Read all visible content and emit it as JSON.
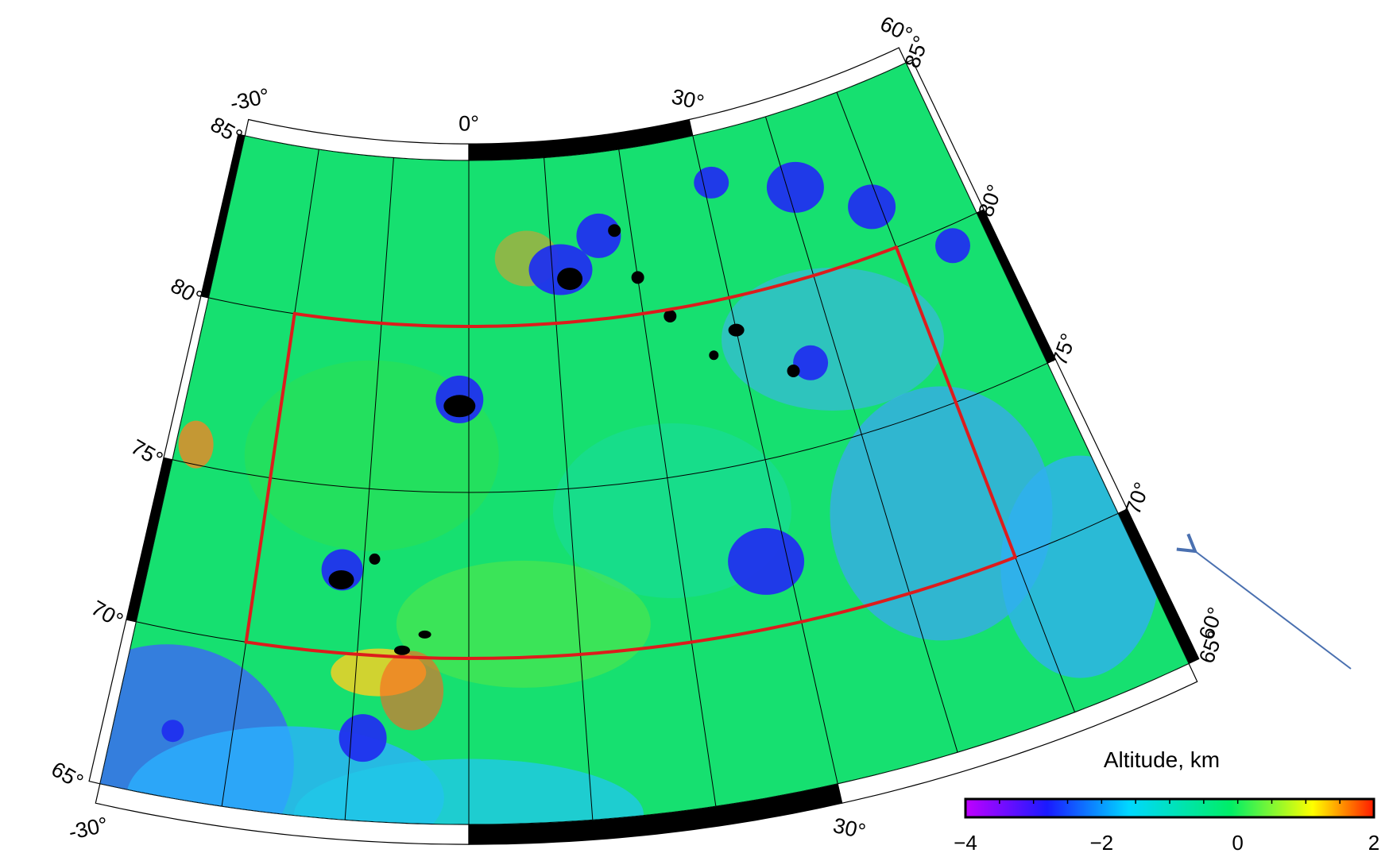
{
  "map": {
    "projection": "conic",
    "lon_range": [
      -30,
      60
    ],
    "lat_range": [
      65,
      85
    ],
    "gridline_lons": [
      -30,
      -20,
      -10,
      0,
      10,
      20,
      30,
      40,
      50,
      60
    ],
    "gridline_lats": [
      65,
      70,
      75,
      80,
      85
    ],
    "region_box": {
      "lon_min": -20,
      "lon_max": 50,
      "lat_min": 70,
      "lat_max": 80,
      "color": "#dd1c1c"
    },
    "lon_labels_outer": [
      "-30°",
      "0°",
      "30°"
    ],
    "lon_labels_inner": [
      "-30°",
      "0°",
      "30°",
      "60°"
    ],
    "lat_labels_left": [
      "65°",
      "70°",
      "75°",
      "80°",
      "85°"
    ],
    "lat_labels_right": [
      "85°",
      "80°",
      "75°",
      "70°",
      "65°"
    ],
    "right_edge_lon_label": "60°"
  },
  "colorbar": {
    "title": "Altitude, km",
    "ticks": [
      "−4",
      "−2",
      "0",
      "2"
    ],
    "range": [
      -4,
      2
    ],
    "colors": [
      "#c000ff",
      "#1a1aff",
      "#00d8ff",
      "#00ee66",
      "#ffff00",
      "#ff1a00"
    ]
  },
  "annotation": {
    "arrow": "pointing-arrow",
    "color": "#4a70b0"
  }
}
